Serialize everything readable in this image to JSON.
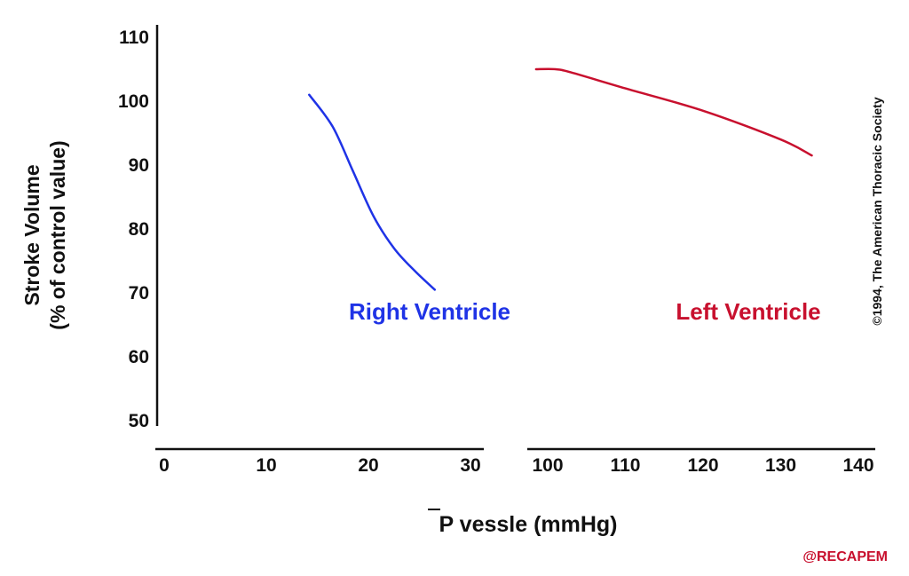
{
  "chart_data": {
    "type": "line",
    "ylabel_line1": "Stroke Volume",
    "ylabel_line2": "(% of control value)",
    "xlabel_symbol": "P",
    "xlabel_rest": " vessle (mmHg)",
    "ylim": [
      50,
      110
    ],
    "y_ticks": [
      "110",
      "100",
      "90",
      "80",
      "70",
      "60",
      "50"
    ],
    "x_segments": [
      {
        "range": [
          0,
          30
        ],
        "ticks": [
          "0",
          "10",
          "20",
          "30"
        ]
      },
      {
        "range": [
          100,
          140
        ],
        "ticks": [
          "100",
          "110",
          "120",
          "130",
          "140"
        ]
      }
    ],
    "grid": false,
    "legend": "inline labels",
    "series": [
      {
        "name": "Right Ventricle",
        "color": "#1f33e6",
        "segment": 0,
        "x": [
          14.2,
          16.5,
          18.5,
          20.5,
          22.5,
          24.5,
          26.5
        ],
        "y": [
          101,
          96,
          89,
          82,
          77,
          73.5,
          70.5
        ]
      },
      {
        "name": "Left Ventricle",
        "color": "#c8102e",
        "segment": 1,
        "x": [
          98.5,
          101,
          103,
          110,
          120,
          130,
          134
        ],
        "y": [
          105,
          105,
          104.5,
          102,
          98.5,
          94,
          91.5
        ]
      }
    ],
    "copyright": "©1994, The American Thoracic Society",
    "credit": "@RECAPEM",
    "credit_color": "#c8102e"
  }
}
